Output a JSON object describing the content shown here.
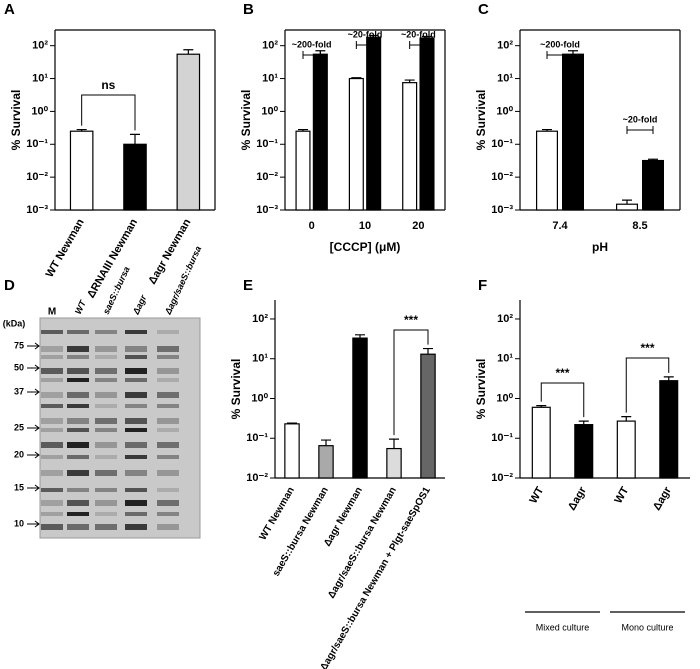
{
  "panel_labels": [
    "A",
    "B",
    "C",
    "D",
    "E",
    "F"
  ],
  "chart_data": [
    {
      "type": "bar",
      "ylabel": "% Survival",
      "scale": "log",
      "frame": true,
      "categories": [
        "WT Newman",
        "ΔRNAIII Newman",
        "Δagr Newman"
      ],
      "series": [
        {
          "colors": [
            "#ffffff",
            "#000000",
            "#d3d3d3"
          ],
          "values": [
            0.25,
            0.1,
            55
          ],
          "errors": [
            0.03,
            0.1,
            20
          ]
        }
      ],
      "ylim": [
        0.001,
        300
      ],
      "yticks": [
        {
          "value": 0.001,
          "label": "10⁻³"
        },
        {
          "value": 0.01,
          "label": "10⁻²"
        },
        {
          "value": 0.1,
          "label": "10⁻¹"
        },
        {
          "value": 1,
          "label": "10⁰"
        },
        {
          "value": 10,
          "label": "10¹"
        },
        {
          "value": 100,
          "label": "10²"
        }
      ],
      "annotations": [
        "ns"
      ]
    },
    {
      "type": "bar",
      "ylabel": "% Survival",
      "xlabel": "[CCCP] (μM)",
      "scale": "log",
      "frame": true,
      "categories": [
        "0",
        "10",
        "20"
      ],
      "series": [
        {
          "color": "#ffffff",
          "values": [
            0.25,
            10,
            7.5
          ],
          "errors": [
            0.03,
            0.6,
            1.5
          ]
        },
        {
          "color": "#000000",
          "values": [
            55,
            180,
            170
          ],
          "errors": [
            15,
            25,
            20
          ]
        }
      ],
      "ylim": [
        0.001,
        300
      ],
      "yticks": [
        {
          "value": 0.001,
          "label": "10⁻³"
        },
        {
          "value": 0.01,
          "label": "10⁻²"
        },
        {
          "value": 0.1,
          "label": "10⁻¹"
        },
        {
          "value": 1,
          "label": "10⁰"
        },
        {
          "value": 10,
          "label": "10¹"
        },
        {
          "value": 100,
          "label": "10²"
        }
      ],
      "annotations": [
        "~200-fold",
        "~20-fold",
        "~20-fold"
      ]
    },
    {
      "type": "bar",
      "ylabel": "% Survival",
      "xlabel": "pH",
      "scale": "log",
      "frame": true,
      "categories": [
        "7.4",
        "8.5"
      ],
      "series": [
        {
          "color": "#ffffff",
          "values": [
            0.25,
            0.0015
          ],
          "errors": [
            0.03,
            0.0005
          ]
        },
        {
          "color": "#000000",
          "values": [
            55,
            0.032
          ],
          "errors": [
            15,
            0.003
          ]
        }
      ],
      "ylim": [
        0.001,
        300
      ],
      "yticks": [
        {
          "value": 0.001,
          "label": "10⁻³"
        },
        {
          "value": 0.01,
          "label": "10⁻²"
        },
        {
          "value": 0.1,
          "label": "10⁻¹"
        },
        {
          "value": 1,
          "label": "10⁰"
        },
        {
          "value": 10,
          "label": "10¹"
        },
        {
          "value": 100,
          "label": "10²"
        }
      ],
      "annotations": [
        "~200-fold",
        "~20-fold"
      ]
    },
    {
      "type": "bar",
      "ylabel": "% Survival",
      "scale": "log",
      "frame": false,
      "categories": [
        "WT Newman",
        "saeS::bursa Newman",
        "Δagr Newman",
        "Δagr/saeS::bursa Newman",
        "Δagr/saeS::bursa Newman + Plgt-saeSpOS1"
      ],
      "series": [
        {
          "colors": [
            "#ffffff",
            "#a9a9a9",
            "#000000",
            "#dcdcdc",
            "#666666"
          ],
          "values": [
            0.23,
            0.065,
            33,
            0.055,
            13
          ],
          "errors": [
            0.01,
            0.025,
            7,
            0.04,
            5
          ]
        }
      ],
      "ylim": [
        0.01,
        300
      ],
      "yticks": [
        {
          "value": 0.01,
          "label": "10⁻²"
        },
        {
          "value": 0.1,
          "label": "10⁻¹"
        },
        {
          "value": 1,
          "label": "10⁰"
        },
        {
          "value": 10,
          "label": "10¹"
        },
        {
          "value": 100,
          "label": "10²"
        }
      ],
      "annotations": [
        "***"
      ]
    },
    {
      "type": "bar",
      "ylabel": "% Survival",
      "scale": "log",
      "frame": false,
      "categories": [
        "WT",
        "Δagr",
        "WT",
        "Δagr"
      ],
      "group_labels": [
        "Mixed culture",
        "Mono culture"
      ],
      "series": [
        {
          "colors": [
            "#ffffff",
            "#000000",
            "#ffffff",
            "#000000"
          ],
          "values": [
            0.6,
            0.22,
            0.27,
            2.8
          ],
          "errors": [
            0.06,
            0.05,
            0.08,
            0.7
          ]
        }
      ],
      "ylim": [
        0.01,
        300
      ],
      "yticks": [
        {
          "value": 0.01,
          "label": "10⁻²"
        },
        {
          "value": 0.1,
          "label": "10⁻¹"
        },
        {
          "value": 1,
          "label": "10⁰"
        },
        {
          "value": 10,
          "label": "10¹"
        },
        {
          "value": 100,
          "label": "10²"
        }
      ],
      "annotations": [
        "***",
        "***"
      ]
    }
  ],
  "gel": {
    "lane_labels": [
      "M",
      "WT",
      "saeS::bursa",
      "Δagr",
      "Δagr/saeS::bursa"
    ],
    "unit": "(kDa)",
    "markers": [
      75,
      50,
      37,
      25,
      20,
      15,
      10
    ]
  }
}
